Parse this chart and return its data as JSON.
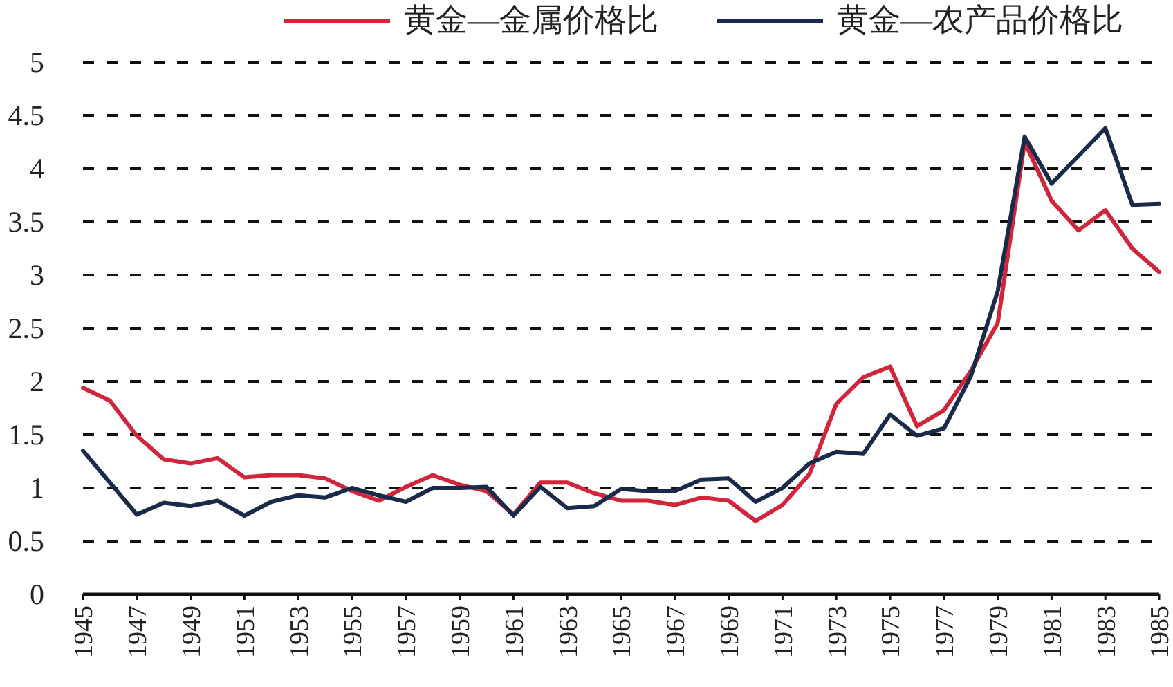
{
  "chart_data": {
    "type": "line",
    "x": [
      1945,
      1946,
      1947,
      1948,
      1949,
      1950,
      1951,
      1952,
      1953,
      1954,
      1955,
      1956,
      1957,
      1958,
      1959,
      1960,
      1961,
      1962,
      1963,
      1964,
      1965,
      1966,
      1967,
      1968,
      1969,
      1970,
      1971,
      1972,
      1973,
      1974,
      1975,
      1976,
      1977,
      1978,
      1979,
      1980,
      1981,
      1982,
      1983,
      1984,
      1985
    ],
    "series": [
      {
        "name": "黄金—金属价格比",
        "color": "#d0253a",
        "values": [
          1.94,
          1.82,
          1.49,
          1.27,
          1.23,
          1.28,
          1.1,
          1.12,
          1.12,
          1.09,
          0.97,
          0.88,
          1.01,
          1.12,
          1.03,
          0.97,
          0.75,
          1.05,
          1.05,
          0.95,
          0.88,
          0.88,
          0.84,
          0.91,
          0.88,
          0.69,
          0.84,
          1.13,
          1.79,
          2.04,
          2.14,
          1.58,
          1.73,
          2.1,
          2.55,
          4.25,
          3.7,
          3.42,
          3.61,
          3.25,
          3.03
        ]
      },
      {
        "name": "黄金—农产品价格比",
        "color": "#1a2a4a",
        "values": [
          1.35,
          1.05,
          0.75,
          0.86,
          0.83,
          0.88,
          0.74,
          0.87,
          0.93,
          0.91,
          1.0,
          0.93,
          0.87,
          1.0,
          1.0,
          1.01,
          0.74,
          1.01,
          0.81,
          0.83,
          0.99,
          0.97,
          0.97,
          1.08,
          1.09,
          0.87,
          1.0,
          1.23,
          1.34,
          1.32,
          1.69,
          1.49,
          1.56,
          2.05,
          2.85,
          4.3,
          3.86,
          4.12,
          4.38,
          3.66,
          3.67
        ]
      }
    ],
    "xlim": [
      1945,
      1985
    ],
    "xticks": [
      1945,
      1947,
      1949,
      1951,
      1953,
      1955,
      1957,
      1959,
      1961,
      1963,
      1965,
      1967,
      1969,
      1971,
      1973,
      1975,
      1977,
      1979,
      1981,
      1983,
      1985
    ],
    "ylim": [
      0,
      5
    ],
    "yticks": [
      0,
      0.5,
      1,
      1.5,
      2,
      2.5,
      3,
      3.5,
      4,
      4.5,
      5
    ],
    "grid": "y",
    "legend": "top"
  }
}
